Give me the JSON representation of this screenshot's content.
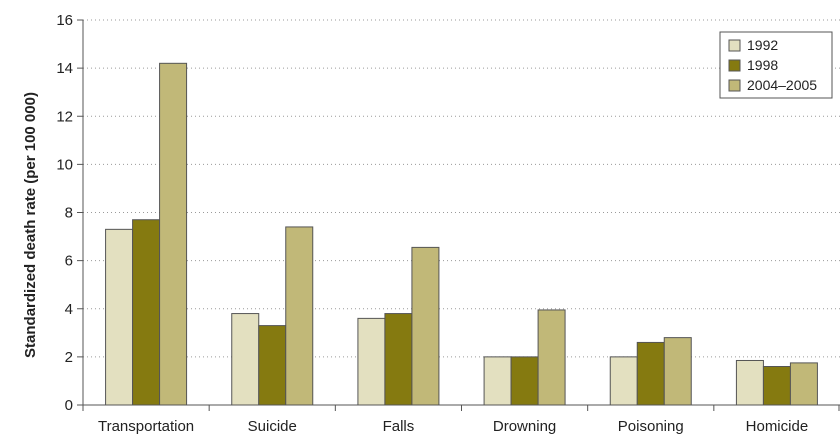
{
  "chart_data": {
    "type": "bar",
    "title": "",
    "xlabel": "",
    "ylabel": "Standardized death rate (per 100 000)",
    "categories": [
      "Transportation",
      "Suicide",
      "Falls",
      "Drowning",
      "Poisoning",
      "Homicide"
    ],
    "series": [
      {
        "name": "1992",
        "color": "#e3e0c0",
        "values": [
          7.3,
          3.8,
          3.6,
          2.0,
          2.0,
          1.85
        ]
      },
      {
        "name": "1998",
        "color": "#857a10",
        "values": [
          7.7,
          3.3,
          3.8,
          2.0,
          2.6,
          1.6
        ]
      },
      {
        "name": "2004–2005",
        "color": "#c1b878",
        "values": [
          14.2,
          7.4,
          6.55,
          3.95,
          2.8,
          1.75
        ]
      }
    ],
    "ylim": [
      0,
      16
    ],
    "yticks": [
      0,
      2,
      4,
      6,
      8,
      10,
      12,
      14,
      16
    ],
    "grid": true,
    "legend_position": "top-right"
  }
}
